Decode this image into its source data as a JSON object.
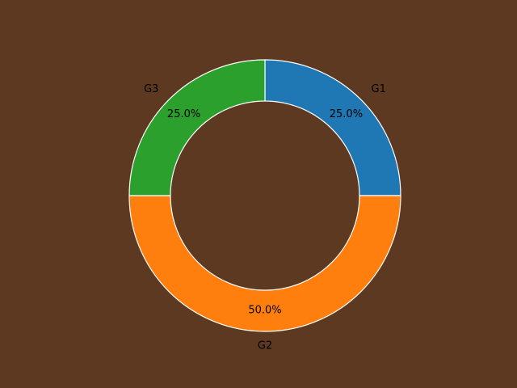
{
  "chart_data": {
    "type": "pie",
    "donut": true,
    "categories": [
      "G1",
      "G2",
      "G3"
    ],
    "values": [
      25,
      50,
      25
    ],
    "percent_labels": [
      "25.0%",
      "50.0%",
      "25.0%"
    ],
    "colors": [
      "#1f77b4",
      "#ff7f0e",
      "#2ca02c"
    ],
    "edge_color": "#ffffff",
    "background": "#5c3920",
    "start_angle_deg": 90,
    "direction": "clockwise",
    "legend": "none"
  }
}
